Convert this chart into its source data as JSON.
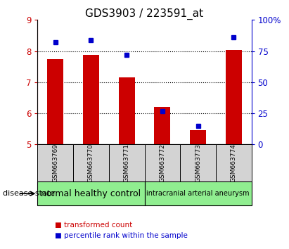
{
  "title": "GDS3903 / 223591_at",
  "samples": [
    "GSM663769",
    "GSM663770",
    "GSM663771",
    "GSM663772",
    "GSM663773",
    "GSM663774"
  ],
  "bar_values": [
    7.75,
    7.88,
    7.15,
    6.2,
    5.45,
    8.03
  ],
  "bar_baseline": 5.0,
  "percentile_values": [
    82,
    84,
    72,
    27,
    15,
    86
  ],
  "bar_color": "#cc0000",
  "percentile_color": "#0000cc",
  "ylim_left": [
    5,
    9
  ],
  "ylim_right": [
    0,
    100
  ],
  "yticks_left": [
    5,
    6,
    7,
    8,
    9
  ],
  "yticks_right": [
    0,
    25,
    50,
    75,
    100
  ],
  "ytick_labels_right": [
    "0",
    "25",
    "50",
    "75",
    "100%"
  ],
  "gridlines_at": [
    6,
    7,
    8
  ],
  "groups": [
    {
      "label": "normal healthy control",
      "indices": [
        0,
        2
      ],
      "color": "#90ee90",
      "fontsize": 9
    },
    {
      "label": "intracranial arterial aneurysm",
      "indices": [
        3,
        5
      ],
      "color": "#90ee90",
      "fontsize": 7
    }
  ],
  "disease_state_label": "disease state",
  "legend": [
    {
      "label": "transformed count",
      "color": "#cc0000"
    },
    {
      "label": "percentile rank within the sample",
      "color": "#0000cc"
    }
  ],
  "bg_color": "#ffffff",
  "plot_bg_color": "#ffffff",
  "label_area_color": "#d3d3d3",
  "left_tick_color": "#cc0000",
  "right_tick_color": "#0000cc",
  "bar_width": 0.45,
  "marker_size": 5
}
